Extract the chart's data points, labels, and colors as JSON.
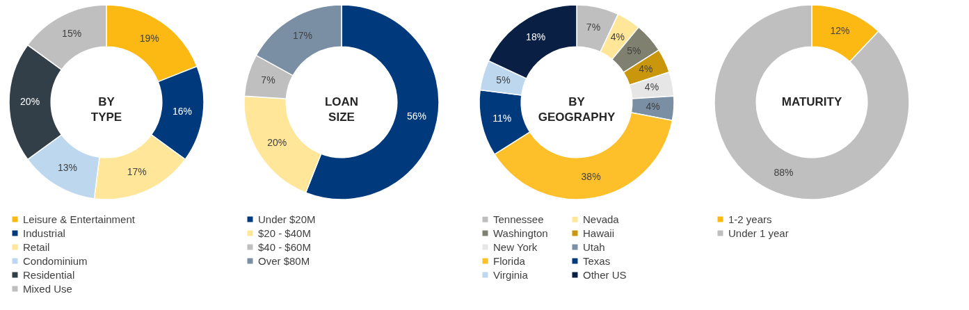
{
  "chart_data": [
    {
      "type": "donut",
      "title": "BY\nTYPE",
      "legend": "bottom",
      "categories": [
        "Leisure & Entertainment",
        "Industrial",
        "Retail",
        "Condominium",
        "Residential",
        "Mixed Use"
      ],
      "values": [
        19,
        16,
        17,
        13,
        20,
        15
      ],
      "value_labels": [
        "19%",
        "16%",
        "17%",
        "13%",
        "20%",
        "15%"
      ],
      "colors": [
        "#fdb913",
        "#003a7d",
        "#ffe699",
        "#bdd7ee",
        "#333f48",
        "#bfbfbf"
      ]
    },
    {
      "type": "donut",
      "title": "LOAN\nSIZE",
      "legend": "bottom",
      "categories": [
        "Under $20M",
        "$20 - $40M",
        "$40 - $60M",
        "Over $80M"
      ],
      "values": [
        56,
        20,
        7,
        17
      ],
      "value_labels": [
        "56%",
        "20%",
        "7%",
        "17%"
      ],
      "colors": [
        "#003a7d",
        "#ffe699",
        "#bfbfbf",
        "#7a8fa3"
      ]
    },
    {
      "type": "donut",
      "title": "BY\nGEOGRAPHY",
      "legend": "bottom",
      "categories": [
        "Tennessee",
        "Nevada",
        "Washington",
        "Hawaii",
        "New York",
        "Utah",
        "Florida",
        "Texas",
        "Virginia",
        "Other US"
      ],
      "values": [
        7,
        4,
        5,
        4,
        4,
        4,
        38,
        11,
        5,
        18
      ],
      "value_labels": [
        "7%",
        "4%",
        "5%",
        "4%",
        "4%",
        "4%",
        "38%",
        "11%",
        "5%",
        "18%"
      ],
      "colors": [
        "#bfbfbf",
        "#ffe699",
        "#808070",
        "#c9960c",
        "#e6e6e6",
        "#7a8fa3",
        "#fdc02a",
        "#003a7d",
        "#bdd7ee",
        "#0a1f44"
      ]
    },
    {
      "type": "donut",
      "title": "MATURITY",
      "legend": "bottom",
      "categories": [
        "1-2 years",
        "Under 1 year"
      ],
      "values": [
        12,
        88
      ],
      "value_labels": [
        "12%",
        "88%"
      ],
      "colors": [
        "#fdb913",
        "#bfbfbf"
      ]
    }
  ]
}
